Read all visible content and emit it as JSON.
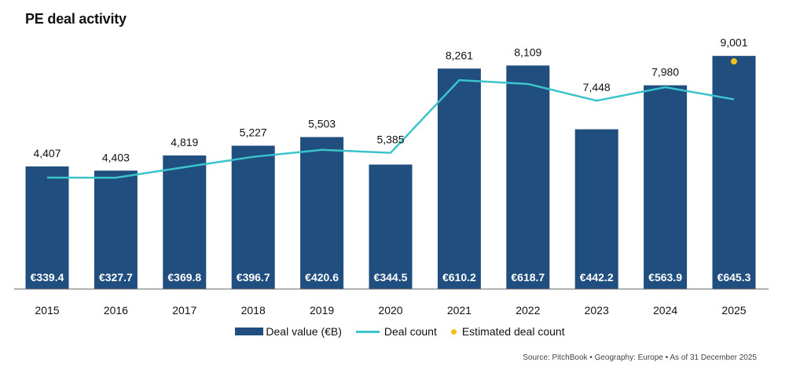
{
  "chart_data": {
    "type": "bar",
    "title": "PE deal activity",
    "categories": [
      "2015",
      "2016",
      "2017",
      "2018",
      "2019",
      "2020",
      "2021",
      "2022",
      "2023",
      "2024",
      "2025"
    ],
    "series": [
      {
        "name": "Deal value (€B)",
        "type": "bar",
        "color": "#1f4e7f",
        "values": [
          339.4,
          327.7,
          369.8,
          396.7,
          420.6,
          344.5,
          610.2,
          618.7,
          442.2,
          563.9,
          645.3
        ],
        "labels": [
          "€339.4",
          "€327.7",
          "€369.8",
          "€396.7",
          "€420.6",
          "€344.5",
          "€610.2",
          "€618.7",
          "€442.2",
          "€563.9",
          "€645.3"
        ]
      },
      {
        "name": "Deal count",
        "type": "line",
        "color": "#3bc4cc",
        "values": [
          4407,
          4403,
          4819,
          5227,
          5503,
          5385,
          8261,
          8109,
          7448,
          7980,
          7500
        ]
      },
      {
        "name": "Estimated deal count",
        "type": "scatter",
        "color": "#f2c21b",
        "points": [
          {
            "x": "2025",
            "y": 9001
          }
        ]
      }
    ],
    "count_labels": [
      "4,407",
      "4,403",
      "4,819",
      "5,227",
      "5,503",
      "5,385",
      "8,261",
      "8,109",
      "7,448",
      "7,980",
      "9,001"
    ],
    "ylim_value": [
      0,
      700
    ],
    "ylim_count": [
      0,
      10000
    ],
    "grid": false,
    "legend": "bottom-center"
  },
  "legend": {
    "bar": "Deal value (€B)",
    "line": "Deal count",
    "dot": "Estimated deal count"
  },
  "source": "Source: PitchBook  •  Geography: Europe •  As of 31 December 2025"
}
